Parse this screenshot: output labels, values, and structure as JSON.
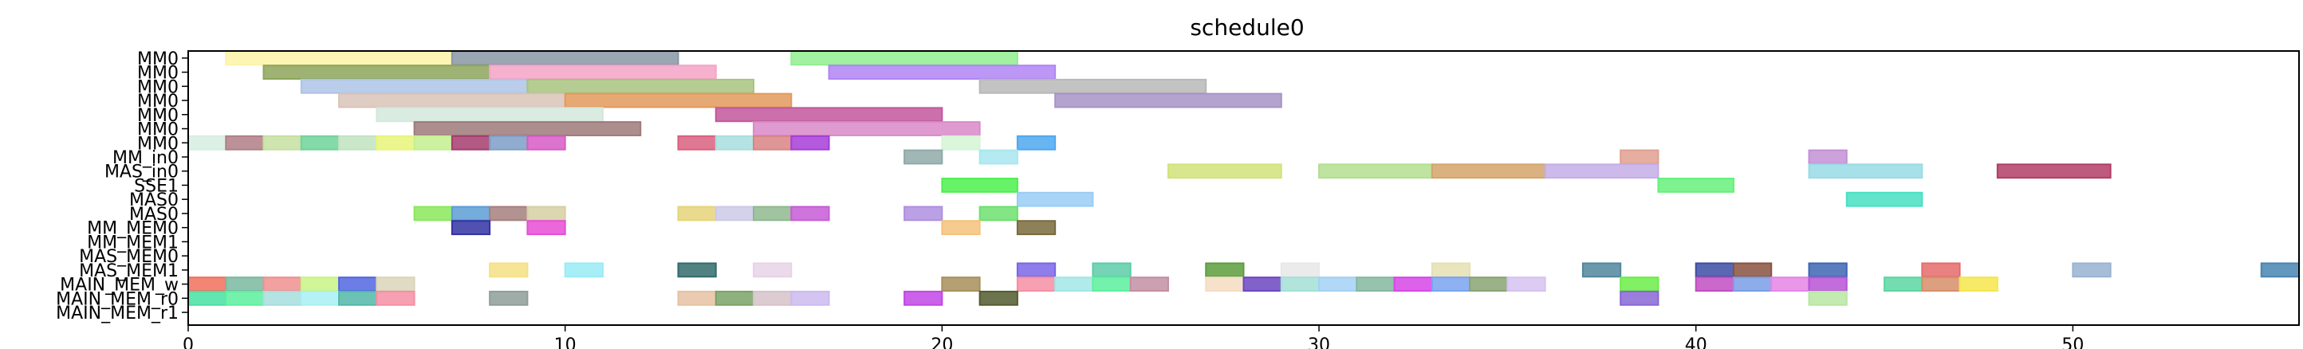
{
  "chart_data": {
    "type": "gantt",
    "title": "schedule0",
    "xlabel": "",
    "ylabel": "",
    "xlim": [
      0,
      56
    ],
    "xticks": [
      0,
      10,
      20,
      30,
      40,
      50
    ],
    "grid": false,
    "rows": [
      "MM0",
      "MM0",
      "MM0",
      "MM0",
      "MM0",
      "MM0",
      "MM0",
      "MM_in0",
      "MAS_in0",
      "SSE1",
      "MAS0",
      "MAS0",
      "MM_MEM0",
      "MM_MEM1",
      "MAS_MEM0",
      "MAS_MEM1",
      "MAIN_MEM_w",
      "MAIN_MEM_r0",
      "MAIN_MEM_r1"
    ],
    "tasks": [
      {
        "row": 0,
        "start": 1,
        "end": 7,
        "color": "#fdf3a7"
      },
      {
        "row": 0,
        "start": 7,
        "end": 13,
        "color": "#8996a6"
      },
      {
        "row": 0,
        "start": 16,
        "end": 22,
        "color": "#90ee90"
      },
      {
        "row": 1,
        "start": 2,
        "end": 8,
        "color": "#8da65b"
      },
      {
        "row": 1,
        "start": 8,
        "end": 14,
        "color": "#f5a3c7"
      },
      {
        "row": 1,
        "start": 17,
        "end": 23,
        "color": "#b085f5"
      },
      {
        "row": 2,
        "start": 3,
        "end": 9,
        "color": "#aec4e6"
      },
      {
        "row": 2,
        "start": 9,
        "end": 15,
        "color": "#a8c47f"
      },
      {
        "row": 2,
        "start": 21,
        "end": 27,
        "color": "#b8b8b8"
      },
      {
        "row": 3,
        "start": 4,
        "end": 10,
        "color": "#d9c3b8"
      },
      {
        "row": 3,
        "start": 10,
        "end": 16,
        "color": "#e39a5c"
      },
      {
        "row": 3,
        "start": 23,
        "end": 29,
        "color": "#a893c7"
      },
      {
        "row": 4,
        "start": 5,
        "end": 11,
        "color": "#d3e8dd"
      },
      {
        "row": 4,
        "start": 14,
        "end": 20,
        "color": "#c2579c"
      },
      {
        "row": 5,
        "start": 6,
        "end": 12,
        "color": "#9e7a7a"
      },
      {
        "row": 5,
        "start": 15,
        "end": 21,
        "color": "#d98ac8"
      },
      {
        "row": 6,
        "start": 0,
        "end": 1,
        "color": "#d6ede3"
      },
      {
        "row": 6,
        "start": 1,
        "end": 2,
        "color": "#b07f86"
      },
      {
        "row": 6,
        "start": 2,
        "end": 3,
        "color": "#c5e0a2"
      },
      {
        "row": 6,
        "start": 3,
        "end": 4,
        "color": "#6fd49a"
      },
      {
        "row": 6,
        "start": 4,
        "end": 5,
        "color": "#c1e3c1"
      },
      {
        "row": 6,
        "start": 5,
        "end": 6,
        "color": "#e8f57a"
      },
      {
        "row": 6,
        "start": 6,
        "end": 7,
        "color": "#c3f091"
      },
      {
        "row": 6,
        "start": 7,
        "end": 8,
        "color": "#a63d6e"
      },
      {
        "row": 6,
        "start": 8,
        "end": 9,
        "color": "#7e9ec7"
      },
      {
        "row": 6,
        "start": 9,
        "end": 10,
        "color": "#d65cc4"
      },
      {
        "row": 6,
        "start": 13,
        "end": 14,
        "color": "#d9607f"
      },
      {
        "row": 6,
        "start": 14,
        "end": 15,
        "color": "#a8dede"
      },
      {
        "row": 6,
        "start": 15,
        "end": 16,
        "color": "#d98484"
      },
      {
        "row": 6,
        "start": 16,
        "end": 17,
        "color": "#a63dd9"
      },
      {
        "row": 6,
        "start": 20,
        "end": 21,
        "color": "#d6f5d6"
      },
      {
        "row": 6,
        "start": 22,
        "end": 23,
        "color": "#4fa8f0"
      },
      {
        "row": 7,
        "start": 19,
        "end": 20,
        "color": "#8faaa8"
      },
      {
        "row": 7,
        "start": 21,
        "end": 22,
        "color": "#a8e6f0"
      },
      {
        "row": 7,
        "start": 38,
        "end": 39,
        "color": "#e0a090"
      },
      {
        "row": 7,
        "start": 43,
        "end": 44,
        "color": "#c390d6"
      },
      {
        "row": 8,
        "start": 26,
        "end": 29,
        "color": "#d1e37a"
      },
      {
        "row": 8,
        "start": 30,
        "end": 33,
        "color": "#b4de91"
      },
      {
        "row": 8,
        "start": 33,
        "end": 36,
        "color": "#d4a56b"
      },
      {
        "row": 8,
        "start": 36,
        "end": 39,
        "color": "#c4aee6"
      },
      {
        "row": 8,
        "start": 43,
        "end": 46,
        "color": "#99dbe6"
      },
      {
        "row": 8,
        "start": 48,
        "end": 51,
        "color": "#b33d66"
      },
      {
        "row": 9,
        "start": 20,
        "end": 22,
        "color": "#4df04d"
      },
      {
        "row": 9,
        "start": 39,
        "end": 41,
        "color": "#66f07a"
      },
      {
        "row": 10,
        "start": 22,
        "end": 24,
        "color": "#99ccf5"
      },
      {
        "row": 10,
        "start": 44,
        "end": 46,
        "color": "#47e0c2"
      },
      {
        "row": 11,
        "start": 6,
        "end": 7,
        "color": "#8ae85c"
      },
      {
        "row": 11,
        "start": 7,
        "end": 8,
        "color": "#5c9ed6"
      },
      {
        "row": 11,
        "start": 8,
        "end": 9,
        "color": "#a67f7f"
      },
      {
        "row": 11,
        "start": 9,
        "end": 10,
        "color": "#d6cfa3"
      },
      {
        "row": 11,
        "start": 13,
        "end": 14,
        "color": "#e6d47a"
      },
      {
        "row": 11,
        "start": 14,
        "end": 15,
        "color": "#ccc9e8"
      },
      {
        "row": 11,
        "start": 15,
        "end": 16,
        "color": "#8fb88f"
      },
      {
        "row": 11,
        "start": 16,
        "end": 17,
        "color": "#c75cd6"
      },
      {
        "row": 11,
        "start": 19,
        "end": 20,
        "color": "#b08fe0"
      },
      {
        "row": 11,
        "start": 21,
        "end": 22,
        "color": "#6ee06e"
      },
      {
        "row": 12,
        "start": 7,
        "end": 8,
        "color": "#3333a3"
      },
      {
        "row": 12,
        "start": 9,
        "end": 10,
        "color": "#e64dd6"
      },
      {
        "row": 12,
        "start": 20,
        "end": 21,
        "color": "#f5c27a"
      },
      {
        "row": 12,
        "start": 22,
        "end": 23,
        "color": "#7a6b3d"
      },
      {
        "row": 15,
        "start": 8,
        "end": 9,
        "color": "#f5e085"
      },
      {
        "row": 15,
        "start": 10,
        "end": 11,
        "color": "#99ebf5"
      },
      {
        "row": 15,
        "start": 13,
        "end": 14,
        "color": "#336b6b"
      },
      {
        "row": 15,
        "start": 15,
        "end": 16,
        "color": "#e6d3e6"
      },
      {
        "row": 15,
        "start": 22,
        "end": 23,
        "color": "#7a66e6"
      },
      {
        "row": 15,
        "start": 24,
        "end": 25,
        "color": "#5ccca8"
      },
      {
        "row": 15,
        "start": 27,
        "end": 28,
        "color": "#5c9e3d"
      },
      {
        "row": 15,
        "start": 29,
        "end": 30,
        "color": "#e8e8e8"
      },
      {
        "row": 15,
        "start": 33,
        "end": 34,
        "color": "#e6e0b3"
      },
      {
        "row": 15,
        "start": 37,
        "end": 38,
        "color": "#52869e"
      },
      {
        "row": 15,
        "start": 40,
        "end": 41,
        "color": "#3d4da3"
      },
      {
        "row": 15,
        "start": 41,
        "end": 42,
        "color": "#8a5240"
      },
      {
        "row": 15,
        "start": 43,
        "end": 44,
        "color": "#3d66b3"
      },
      {
        "row": 15,
        "start": 46,
        "end": 47,
        "color": "#e66b6b"
      },
      {
        "row": 15,
        "start": 50,
        "end": 51,
        "color": "#99b3d1"
      },
      {
        "row": 15,
        "start": 55,
        "end": 56,
        "color": "#4785b3"
      },
      {
        "row": 16,
        "start": 0,
        "end": 1,
        "color": "#f0705c"
      },
      {
        "row": 16,
        "start": 1,
        "end": 2,
        "color": "#7ab8a0"
      },
      {
        "row": 16,
        "start": 2,
        "end": 3,
        "color": "#f08f8f"
      },
      {
        "row": 16,
        "start": 3,
        "end": 4,
        "color": "#c8f585"
      },
      {
        "row": 16,
        "start": 4,
        "end": 5,
        "color": "#5266e0"
      },
      {
        "row": 16,
        "start": 5,
        "end": 6,
        "color": "#d9d6b8"
      },
      {
        "row": 16,
        "start": 20,
        "end": 21,
        "color": "#a88f5c"
      },
      {
        "row": 16,
        "start": 22,
        "end": 23,
        "color": "#f58fa3"
      },
      {
        "row": 16,
        "start": 23,
        "end": 24,
        "color": "#a3e6e6"
      },
      {
        "row": 16,
        "start": 24,
        "end": 25,
        "color": "#5cf09e"
      },
      {
        "row": 16,
        "start": 25,
        "end": 26,
        "color": "#c28fa3"
      },
      {
        "row": 16,
        "start": 27,
        "end": 28,
        "color": "#f5dcc2"
      },
      {
        "row": 16,
        "start": 28,
        "end": 29,
        "color": "#6b47c2"
      },
      {
        "row": 16,
        "start": 29,
        "end": 30,
        "color": "#a3e0d6"
      },
      {
        "row": 16,
        "start": 30,
        "end": 31,
        "color": "#a3d1f5"
      },
      {
        "row": 16,
        "start": 31,
        "end": 32,
        "color": "#85b8a0"
      },
      {
        "row": 16,
        "start": 32,
        "end": 33,
        "color": "#d647e6"
      },
      {
        "row": 16,
        "start": 33,
        "end": 34,
        "color": "#7aa3f0"
      },
      {
        "row": 16,
        "start": 34,
        "end": 35,
        "color": "#8aa373"
      },
      {
        "row": 16,
        "start": 35,
        "end": 36,
        "color": "#d6c2f0"
      },
      {
        "row": 16,
        "start": 38,
        "end": 39,
        "color": "#6bed47"
      },
      {
        "row": 16,
        "start": 40,
        "end": 41,
        "color": "#c24dc2"
      },
      {
        "row": 16,
        "start": 41,
        "end": 42,
        "color": "#7a9ee6"
      },
      {
        "row": 16,
        "start": 42,
        "end": 43,
        "color": "#e685e6"
      },
      {
        "row": 16,
        "start": 43,
        "end": 44,
        "color": "#b852d6"
      },
      {
        "row": 16,
        "start": 45,
        "end": 46,
        "color": "#5cd6a3"
      },
      {
        "row": 16,
        "start": 46,
        "end": 47,
        "color": "#d68f6b"
      },
      {
        "row": 16,
        "start": 47,
        "end": 48,
        "color": "#f5e64d"
      },
      {
        "row": 17,
        "start": 0,
        "end": 1,
        "color": "#47e0a3"
      },
      {
        "row": 17,
        "start": 1,
        "end": 2,
        "color": "#5cf09e"
      },
      {
        "row": 17,
        "start": 2,
        "end": 3,
        "color": "#a8dede"
      },
      {
        "row": 17,
        "start": 3,
        "end": 4,
        "color": "#a8f0f5"
      },
      {
        "row": 17,
        "start": 4,
        "end": 5,
        "color": "#52b8a8"
      },
      {
        "row": 17,
        "start": 5,
        "end": 6,
        "color": "#f58fa3"
      },
      {
        "row": 17,
        "start": 8,
        "end": 9,
        "color": "#8f9e99"
      },
      {
        "row": 17,
        "start": 13,
        "end": 14,
        "color": "#e6c2a3"
      },
      {
        "row": 17,
        "start": 14,
        "end": 15,
        "color": "#7aa366"
      },
      {
        "row": 17,
        "start": 15,
        "end": 16,
        "color": "#d6c2c8"
      },
      {
        "row": 17,
        "start": 16,
        "end": 17,
        "color": "#cbbaf0"
      },
      {
        "row": 17,
        "start": 19,
        "end": 20,
        "color": "#c247e6"
      },
      {
        "row": 17,
        "start": 21,
        "end": 22,
        "color": "#525c2e"
      },
      {
        "row": 17,
        "start": 38,
        "end": 39,
        "color": "#8a66d6"
      },
      {
        "row": 17,
        "start": 43,
        "end": 44,
        "color": "#b8e6a3"
      }
    ]
  }
}
